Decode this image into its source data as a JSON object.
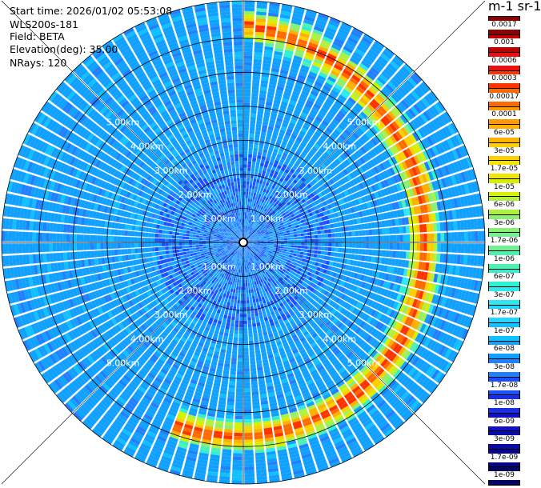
{
  "header": {
    "start_time": "Start time: 2026/01/02 05:53:08",
    "instrument": "WLS200s-181",
    "field": "Field: BETA",
    "elevation": "Elevation(deg): 35.00",
    "nrays": "NRays: 120"
  },
  "colorbar": {
    "title": "m-1 sr-1",
    "levels": [
      "0.0017",
      "0.001",
      "0.0006",
      "0.0003",
      "0.00017",
      "0.0001",
      "6e-05",
      "3e-05",
      "1.7e-05",
      "1e-05",
      "6e-06",
      "3e-06",
      "1.7e-06",
      "1e-06",
      "6e-07",
      "3e-07",
      "1.7e-07",
      "1e-07",
      "6e-08",
      "3e-08",
      "1.7e-08",
      "1e-08",
      "6e-09",
      "3e-09",
      "1.7e-09",
      "1e-09"
    ],
    "colors": [
      "#8b0000",
      "#c00000",
      "#e81010",
      "#ff3300",
      "#ff6a00",
      "#ff9900",
      "#ffb000",
      "#ffd000",
      "#f2e600",
      "#d6f000",
      "#b0f040",
      "#8af070",
      "#70f090",
      "#50f0b0",
      "#30f0d0",
      "#30e8f0",
      "#20d8ff",
      "#10c0ff",
      "#10a0ff",
      "#2080ff",
      "#1a50ff",
      "#1830e0",
      "#1010c8",
      "#0a0aa8",
      "#060688",
      "#030360"
    ]
  },
  "chart_data": {
    "type": "heatmap",
    "projection": "polar-ppi",
    "field": "BETA",
    "elevation_deg": 35.0,
    "n_rays": 120,
    "range_rings_km": [
      1,
      2,
      3,
      4,
      5
    ],
    "ring_labels": [
      "1.00km",
      "2.00km",
      "3.00km",
      "4.00km",
      "5.00km"
    ],
    "max_range_km": 7.1,
    "colorbar_scale": "log",
    "colorbar_range": [
      1e-09,
      0.0017
    ],
    "background_level": "6e-08",
    "high_backscatter_arc": {
      "azimuth_deg": [
        0,
        200
      ],
      "range_km_at_azimuth": [
        {
          "az": 0,
          "range_km": 6.4
        },
        {
          "az": 45,
          "range_km": 5.6
        },
        {
          "az": 90,
          "range_km": 5.3
        },
        {
          "az": 135,
          "range_km": 5.5
        },
        {
          "az": 180,
          "range_km": 5.7
        },
        {
          "az": 195,
          "range_km": 5.75
        }
      ],
      "peak_level": "0.0003"
    }
  }
}
